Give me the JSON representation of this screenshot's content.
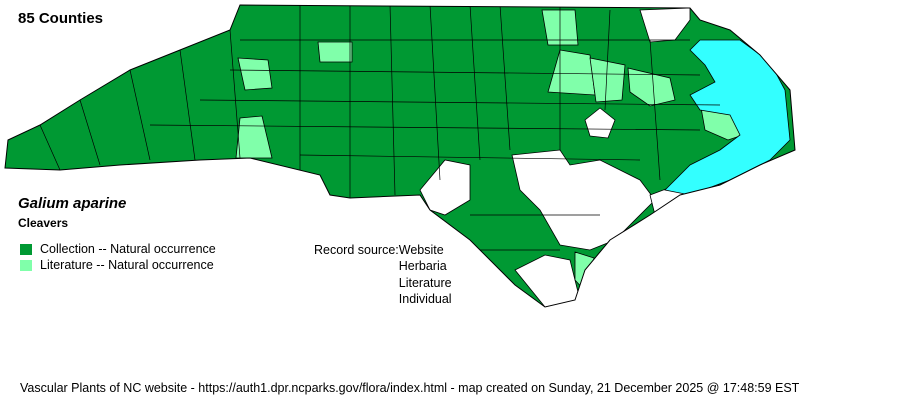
{
  "header": {
    "county_count": "85 Counties"
  },
  "species": {
    "scientific_name": "Galium aparine",
    "common_name": "Cleavers"
  },
  "legend": [
    {
      "label": "Collection -- Natural occurrence",
      "color": "#009933"
    },
    {
      "label": "Literature -- Natural occurrence",
      "color": "#80ffaa"
    }
  ],
  "record_source": {
    "label": "Record source:",
    "values": [
      "Website",
      "Herbaria",
      "Literature",
      "Individual"
    ]
  },
  "map": {
    "state": "North Carolina",
    "water_color": "#33ffff",
    "no_record_color": "#ffffff"
  },
  "footer": {
    "text": "Vascular Plants of NC website - https://auth1.dpr.ncparks.gov/flora/index.html - map created on Sunday, 21 December 2025 @ 17:48:59 EST"
  }
}
